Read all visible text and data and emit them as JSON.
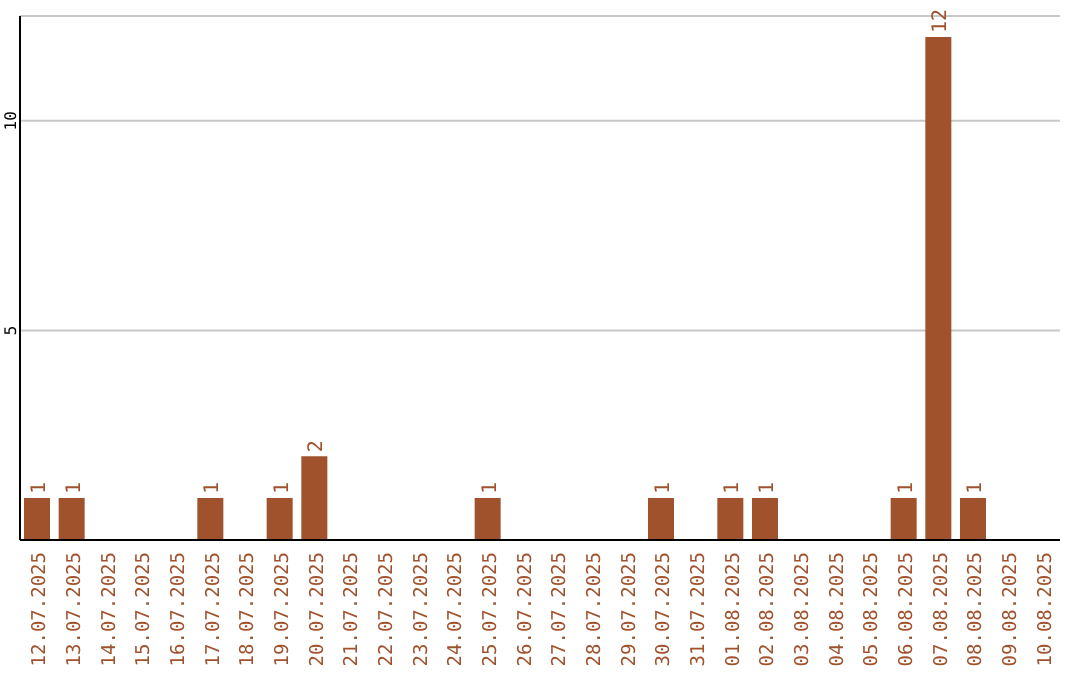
{
  "chart_data": {
    "type": "bar",
    "categories": [
      "12.07.2025",
      "13.07.2025",
      "14.07.2025",
      "15.07.2025",
      "16.07.2025",
      "17.07.2025",
      "18.07.2025",
      "19.07.2025",
      "20.07.2025",
      "21.07.2025",
      "22.07.2025",
      "23.07.2025",
      "24.07.2025",
      "25.07.2025",
      "26.07.2025",
      "27.07.2025",
      "28.07.2025",
      "29.07.2025",
      "30.07.2025",
      "31.07.2025",
      "01.08.2025",
      "02.08.2025",
      "03.08.2025",
      "04.08.2025",
      "05.08.2025",
      "06.08.2025",
      "07.08.2025",
      "08.08.2025",
      "09.08.2025",
      "10.08.2025"
    ],
    "values": [
      1,
      1,
      0,
      0,
      0,
      1,
      0,
      1,
      2,
      0,
      0,
      0,
      0,
      1,
      0,
      0,
      0,
      0,
      1,
      0,
      1,
      1,
      0,
      0,
      0,
      1,
      12,
      1,
      0,
      0
    ],
    "value_labels": [
      "1",
      "1",
      null,
      null,
      null,
      "1",
      null,
      "1",
      "2",
      null,
      null,
      null,
      null,
      "1",
      null,
      null,
      null,
      null,
      "1",
      null,
      "1",
      "1",
      null,
      null,
      null,
      "1",
      "12",
      "1",
      null,
      null
    ],
    "color": "#a0522d",
    "ylim": [
      0,
      12.5
    ],
    "yticks": [
      5,
      10
    ],
    "grid": "y",
    "legend": false
  }
}
